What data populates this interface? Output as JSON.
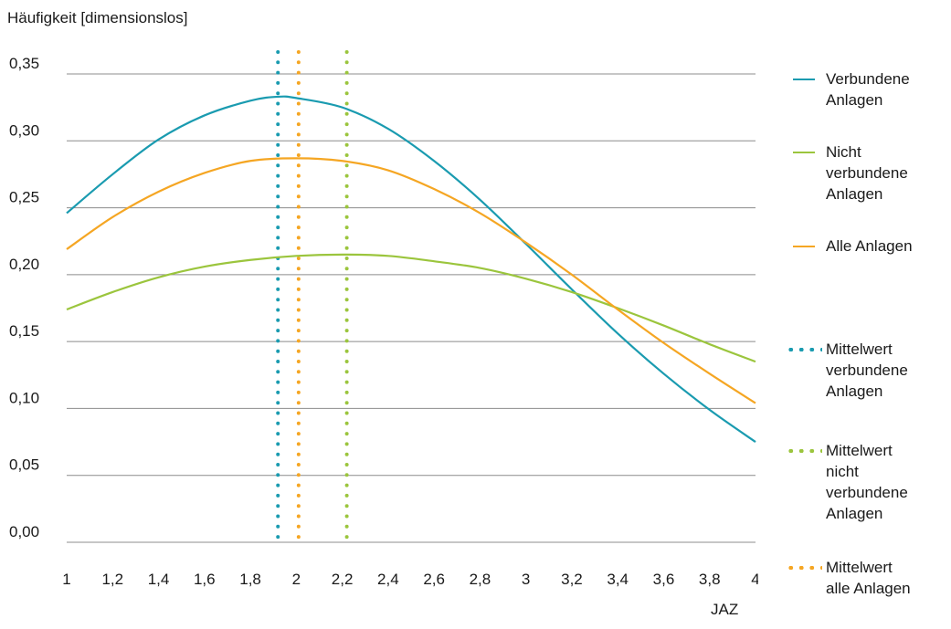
{
  "chart_data": {
    "type": "line",
    "ylabel": "Häufigkeit [dimensionslos]",
    "xlabel": "JAZ",
    "xlim": [
      1,
      4
    ],
    "ylim": [
      0,
      0.35
    ],
    "x_ticks": [
      "1",
      "1,2",
      "1,4",
      "1,6",
      "1,8",
      "2",
      "2,2",
      "2,4",
      "2,6",
      "2,8",
      "3",
      "3,2",
      "3,4",
      "3,6",
      "3,8",
      "4"
    ],
    "y_ticks": [
      "0,00",
      "0,05",
      "0,10",
      "0,15",
      "0,20",
      "0,25",
      "0,30",
      "0,35"
    ],
    "grid": "horizontal",
    "legend_position": "right",
    "series": [
      {
        "name": "Verbundene Anlagen",
        "color": "#1a9bb0",
        "style": "solid",
        "x": [
          1,
          1.2,
          1.4,
          1.6,
          1.8,
          1.92,
          2,
          2.2,
          2.4,
          2.6,
          2.8,
          3,
          3.2,
          3.4,
          3.6,
          3.8,
          4
        ],
        "y": [
          0.246,
          0.275,
          0.301,
          0.319,
          0.33,
          0.333,
          0.332,
          0.325,
          0.309,
          0.285,
          0.256,
          0.223,
          0.189,
          0.156,
          0.126,
          0.099,
          0.075
        ]
      },
      {
        "name": "Nicht verbundene Anlagen",
        "color": "#9bc53d",
        "style": "solid",
        "x": [
          1,
          1.2,
          1.4,
          1.6,
          1.8,
          2,
          2.2,
          2.4,
          2.6,
          2.8,
          3,
          3.2,
          3.4,
          3.6,
          3.8,
          4
        ],
        "y": [
          0.174,
          0.187,
          0.198,
          0.206,
          0.211,
          0.214,
          0.215,
          0.214,
          0.21,
          0.205,
          0.197,
          0.187,
          0.175,
          0.162,
          0.148,
          0.135
        ]
      },
      {
        "name": "Alle Anlagen",
        "color": "#f5a623",
        "style": "solid",
        "x": [
          1,
          1.2,
          1.4,
          1.6,
          1.8,
          2,
          2.2,
          2.4,
          2.6,
          2.8,
          3,
          3.2,
          3.4,
          3.6,
          3.8,
          4
        ],
        "y": [
          0.219,
          0.243,
          0.262,
          0.276,
          0.285,
          0.287,
          0.285,
          0.278,
          0.264,
          0.246,
          0.224,
          0.2,
          0.174,
          0.149,
          0.126,
          0.104
        ]
      }
    ],
    "mean_lines": [
      {
        "name": "Mittelwert verbundene Anlagen",
        "color": "#1a9bb0",
        "style": "dotted",
        "x": 1.92
      },
      {
        "name": "Mittelwert nicht verbundene Anlagen",
        "color": "#9bc53d",
        "style": "dotted",
        "x": 2.22
      },
      {
        "name": "Mittelwert alle Anlagen",
        "color": "#f5a623",
        "style": "dotted",
        "x": 2.01
      }
    ],
    "legend": [
      {
        "lines": [
          "Verbundene",
          "Anlagen"
        ],
        "color": "#1a9bb0",
        "style": "solid"
      },
      {
        "lines": [
          "Nicht",
          "verbundene",
          "Anlagen"
        ],
        "color": "#9bc53d",
        "style": "solid"
      },
      {
        "lines": [
          "Alle Anlagen"
        ],
        "color": "#f5a623",
        "style": "solid"
      },
      {
        "lines": [
          "Mittelwert",
          "verbundene",
          "Anlagen"
        ],
        "color": "#1a9bb0",
        "style": "dotted"
      },
      {
        "lines": [
          "Mittelwert",
          "nicht",
          "verbundene",
          "Anlagen"
        ],
        "color": "#9bc53d",
        "style": "dotted"
      },
      {
        "lines": [
          "Mittelwert",
          "alle Anlagen"
        ],
        "color": "#f5a623",
        "style": "dotted"
      }
    ]
  }
}
